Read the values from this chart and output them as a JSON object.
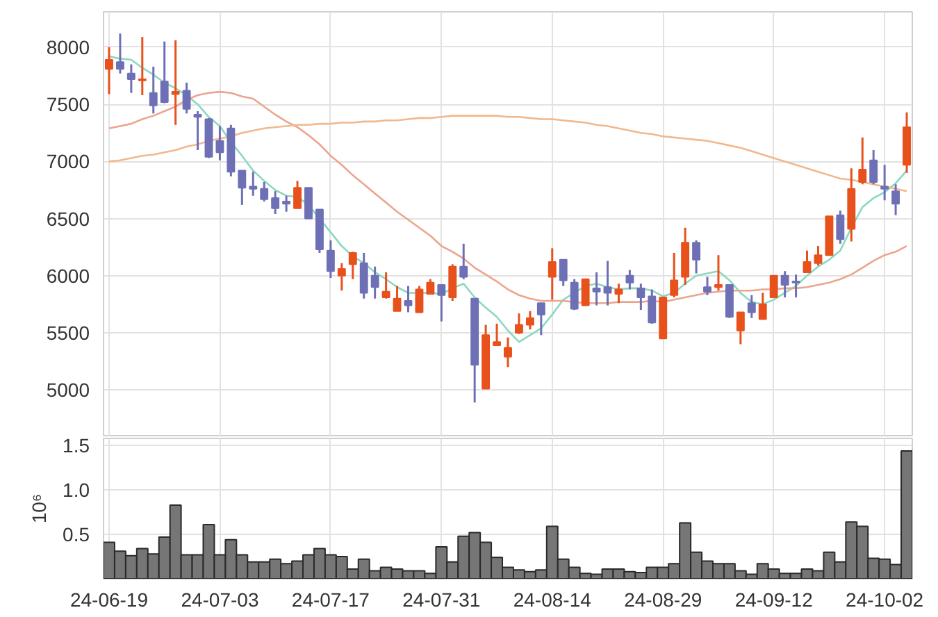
{
  "chart_data": [
    {
      "type": "candlestick",
      "categories": [
        null,
        null,
        null,
        null,
        null,
        null,
        null,
        null,
        null,
        null,
        null,
        null,
        null,
        null,
        null,
        null,
        null,
        null,
        null,
        null,
        null,
        null,
        null,
        null,
        null,
        null,
        null,
        null,
        null,
        null,
        null,
        null,
        null,
        null,
        null,
        null,
        null,
        null,
        null,
        null,
        null,
        null,
        null,
        null,
        null,
        null,
        null,
        null,
        null,
        null,
        null,
        null,
        null,
        null,
        null,
        null,
        null,
        null,
        null,
        null,
        null,
        null,
        null,
        null,
        null,
        null,
        null,
        null,
        null,
        null,
        null,
        null,
        null
      ],
      "ohlc": [
        [
          7810,
          8000,
          7590,
          7890
        ],
        [
          7870,
          8120,
          7770,
          7810
        ],
        [
          7770,
          7850,
          7600,
          7720
        ],
        [
          7710,
          8090,
          7580,
          7720
        ],
        [
          7600,
          7830,
          7420,
          7490
        ],
        [
          7700,
          8050,
          7510,
          7520
        ],
        [
          7590,
          8060,
          7320,
          7610
        ],
        [
          7620,
          7690,
          7420,
          7460
        ],
        [
          7410,
          7440,
          7100,
          7390
        ],
        [
          7370,
          7380,
          7030,
          7040
        ],
        [
          7180,
          7310,
          7010,
          7080
        ],
        [
          7290,
          7320,
          6870,
          6910
        ],
        [
          6920,
          6920,
          6620,
          6770
        ],
        [
          6780,
          6910,
          6700,
          6760
        ],
        [
          6760,
          6820,
          6650,
          6670
        ],
        [
          6680,
          6740,
          6540,
          6590
        ],
        [
          6650,
          6700,
          6560,
          6630
        ],
        [
          6590,
          6830,
          6590,
          6770
        ],
        [
          6770,
          6770,
          6500,
          6500
        ],
        [
          6580,
          6580,
          6200,
          6230
        ],
        [
          6220,
          6310,
          5980,
          6040
        ],
        [
          6000,
          6110,
          5870,
          6060
        ],
        [
          6100,
          6210,
          5970,
          6200
        ],
        [
          6110,
          6200,
          5800,
          5850
        ],
        [
          6000,
          6080,
          5800,
          5900
        ],
        [
          5810,
          6030,
          5800,
          5860
        ],
        [
          5690,
          5910,
          5690,
          5800
        ],
        [
          5780,
          5910,
          5680,
          5740
        ],
        [
          5680,
          5910,
          5680,
          5880
        ],
        [
          5840,
          5970,
          5840,
          5940
        ],
        [
          5920,
          5920,
          5600,
          5830
        ],
        [
          5810,
          6100,
          5780,
          6080
        ],
        [
          6080,
          6280,
          5970,
          5990
        ],
        [
          5800,
          5800,
          4890,
          5220
        ],
        [
          5010,
          5570,
          5010,
          5480
        ],
        [
          5390,
          5580,
          5390,
          5420
        ],
        [
          5290,
          5460,
          5200,
          5370
        ],
        [
          5500,
          5670,
          5490,
          5570
        ],
        [
          5570,
          5690,
          5530,
          5630
        ],
        [
          5760,
          5760,
          5480,
          5660
        ],
        [
          5990,
          6240,
          5790,
          6120
        ],
        [
          6140,
          6140,
          5910,
          5960
        ],
        [
          5940,
          5970,
          5700,
          5710
        ],
        [
          5740,
          5970,
          5740,
          5970
        ],
        [
          5890,
          6030,
          5740,
          5860
        ],
        [
          5900,
          6130,
          5740,
          5850
        ],
        [
          5840,
          5930,
          5760,
          5880
        ],
        [
          6000,
          6050,
          5880,
          5940
        ],
        [
          5890,
          5930,
          5700,
          5810
        ],
        [
          5820,
          5880,
          5580,
          5590
        ],
        [
          5450,
          5810,
          5450,
          5810
        ],
        [
          5830,
          6200,
          5810,
          5960
        ],
        [
          5990,
          6420,
          5920,
          6290
        ],
        [
          6290,
          6310,
          6020,
          6140
        ],
        [
          5900,
          5990,
          5830,
          5860
        ],
        [
          5900,
          6180,
          5870,
          5920
        ],
        [
          5920,
          5920,
          5630,
          5640
        ],
        [
          5520,
          5680,
          5400,
          5680
        ],
        [
          5760,
          5830,
          5630,
          5680
        ],
        [
          5620,
          5850,
          5620,
          5750
        ],
        [
          5810,
          6000,
          5810,
          6000
        ],
        [
          6000,
          6040,
          5810,
          5920
        ],
        [
          5950,
          6010,
          5810,
          5940
        ],
        [
          6030,
          6220,
          6030,
          6120
        ],
        [
          6110,
          6260,
          6090,
          6180
        ],
        [
          6180,
          6520,
          6180,
          6520
        ],
        [
          6530,
          6570,
          6280,
          6320
        ],
        [
          6410,
          6940,
          6300,
          6760
        ],
        [
          6820,
          7210,
          6800,
          6930
        ],
        [
          7010,
          7100,
          6800,
          6820
        ],
        [
          6780,
          6970,
          6660,
          6760
        ],
        [
          6740,
          6800,
          6530,
          6630
        ],
        [
          6970,
          7430,
          6900,
          7300
        ]
      ],
      "colors": [
        "#e8501c",
        "#6e70b6",
        "#6e70b6",
        "#e8501c",
        "#6e70b6",
        "#6e70b6",
        "#e8501c",
        "#6e70b6",
        "#6e70b6",
        "#6e70b6",
        "#6e70b6",
        "#6e70b6",
        "#6e70b6",
        "#6e70b6",
        "#6e70b6",
        "#6e70b6",
        "#6e70b6",
        "#e8501c",
        "#6e70b6",
        "#6e70b6",
        "#6e70b6",
        "#e8501c",
        "#e8501c",
        "#6e70b6",
        "#6e70b6",
        "#e8501c",
        "#e8501c",
        "#6e70b6",
        "#e8501c",
        "#e8501c",
        "#6e70b6",
        "#e8501c",
        "#6e70b6",
        "#6e70b6",
        "#e8501c",
        "#e8501c",
        "#e8501c",
        "#e8501c",
        "#e8501c",
        "#6e70b6",
        "#e8501c",
        "#6e70b6",
        "#6e70b6",
        "#e8501c",
        "#6e70b6",
        "#6e70b6",
        "#e8501c",
        "#6e70b6",
        "#6e70b6",
        "#6e70b6",
        "#e8501c",
        "#e8501c",
        "#e8501c",
        "#6e70b6",
        "#6e70b6",
        "#e8501c",
        "#6e70b6",
        "#e8501c",
        "#6e70b6",
        "#e8501c",
        "#e8501c",
        "#6e70b6",
        "#6e70b6",
        "#e8501c",
        "#e8501c",
        "#e8501c",
        "#6e70b6",
        "#e8501c",
        "#e8501c",
        "#6e70b6",
        "#6e70b6",
        "#6e70b6",
        "#e8501c"
      ],
      "series": [
        {
          "type": "line",
          "color": "#8bd8c0",
          "values": [
            7920,
            7900,
            7890,
            7820,
            7760,
            7690,
            7640,
            7580,
            7500,
            7390,
            7310,
            7170,
            7050,
            6920,
            6830,
            6750,
            6700,
            6690,
            6620,
            6500,
            6380,
            6260,
            6170,
            6110,
            6030,
            5970,
            5900,
            5850,
            5850,
            5850,
            5840,
            5890,
            5930,
            5810,
            5720,
            5640,
            5520,
            5420,
            5480,
            5540,
            5660,
            5790,
            5850,
            5910,
            5930,
            5900,
            5880,
            5890,
            5890,
            5870,
            5820,
            5850,
            5930,
            6000,
            6020,
            6040,
            5960,
            5850,
            5770,
            5750,
            5790,
            5850,
            5910,
            6000,
            6080,
            6140,
            6220,
            6420,
            6600,
            6680,
            6730,
            6810,
            6920
          ]
        },
        {
          "type": "line",
          "color": "#eba58d",
          "values": [
            7290,
            7310,
            7330,
            7370,
            7400,
            7440,
            7480,
            7540,
            7580,
            7600,
            7610,
            7600,
            7570,
            7550,
            7480,
            7410,
            7350,
            7300,
            7230,
            7150,
            7050,
            6970,
            6880,
            6800,
            6720,
            6640,
            6560,
            6490,
            6420,
            6350,
            6260,
            6210,
            6150,
            6070,
            6010,
            5950,
            5880,
            5830,
            5800,
            5780,
            5780,
            5780,
            5770,
            5760,
            5760,
            5760,
            5770,
            5770,
            5770,
            5780,
            5770,
            5790,
            5810,
            5830,
            5850,
            5860,
            5870,
            5870,
            5870,
            5880,
            5880,
            5890,
            5890,
            5900,
            5920,
            5940,
            5970,
            6010,
            6070,
            6130,
            6180,
            6210,
            6260
          ]
        },
        {
          "type": "line",
          "color": "#f2b88c",
          "values": [
            7000,
            7010,
            7030,
            7050,
            7060,
            7080,
            7100,
            7130,
            7150,
            7180,
            7200,
            7220,
            7250,
            7270,
            7290,
            7300,
            7310,
            7320,
            7320,
            7330,
            7330,
            7340,
            7340,
            7350,
            7350,
            7360,
            7360,
            7370,
            7380,
            7380,
            7390,
            7400,
            7400,
            7400,
            7400,
            7400,
            7390,
            7390,
            7380,
            7370,
            7370,
            7360,
            7350,
            7340,
            7320,
            7310,
            7290,
            7270,
            7250,
            7240,
            7220,
            7210,
            7200,
            7190,
            7180,
            7160,
            7140,
            7120,
            7090,
            7060,
            7030,
            7000,
            6970,
            6940,
            6910,
            6880,
            6850,
            6840,
            6820,
            6800,
            6780,
            6760,
            6740
          ]
        }
      ],
      "ylim": [
        4600,
        8310
      ],
      "yticks": [
        5000,
        5500,
        6000,
        6500,
        7000,
        7500,
        8000
      ],
      "grid": true
    },
    {
      "type": "bar",
      "categories": [
        "24-06-19",
        null,
        null,
        null,
        null,
        null,
        null,
        null,
        null,
        null,
        "24-07-03",
        null,
        null,
        null,
        null,
        null,
        null,
        null,
        null,
        null,
        "24-07-17",
        null,
        null,
        null,
        null,
        null,
        null,
        null,
        null,
        null,
        "24-07-31",
        null,
        null,
        null,
        null,
        null,
        null,
        null,
        null,
        null,
        "24-08-14",
        null,
        null,
        null,
        null,
        null,
        null,
        null,
        null,
        null,
        "24-08-29",
        null,
        null,
        null,
        null,
        null,
        null,
        null,
        null,
        null,
        "24-09-12",
        null,
        null,
        null,
        null,
        null,
        null,
        null,
        null,
        null,
        "24-10-02",
        null,
        null
      ],
      "values": [
        0.41,
        0.31,
        0.26,
        0.34,
        0.28,
        0.47,
        0.83,
        0.27,
        0.27,
        0.61,
        0.27,
        0.44,
        0.27,
        0.19,
        0.19,
        0.22,
        0.17,
        0.2,
        0.27,
        0.34,
        0.27,
        0.25,
        0.11,
        0.22,
        0.09,
        0.13,
        0.11,
        0.09,
        0.09,
        0.06,
        0.36,
        0.19,
        0.48,
        0.52,
        0.41,
        0.24,
        0.13,
        0.1,
        0.08,
        0.1,
        0.59,
        0.22,
        0.13,
        0.06,
        0.05,
        0.11,
        0.11,
        0.08,
        0.07,
        0.13,
        0.13,
        0.17,
        0.63,
        0.3,
        0.2,
        0.17,
        0.17,
        0.09,
        0.05,
        0.17,
        0.11,
        0.06,
        0.06,
        0.11,
        0.09,
        0.3,
        0.19,
        0.64,
        0.59,
        0.23,
        0.22,
        0.16,
        1.44
      ],
      "color": "#767676",
      "ylabel": "10⁶",
      "ylim": [
        0,
        1.58
      ],
      "yticks": [
        0.5,
        {
          "value": 1,
          "label": "1.0"
        },
        1.5
      ],
      "grid": true
    }
  ]
}
